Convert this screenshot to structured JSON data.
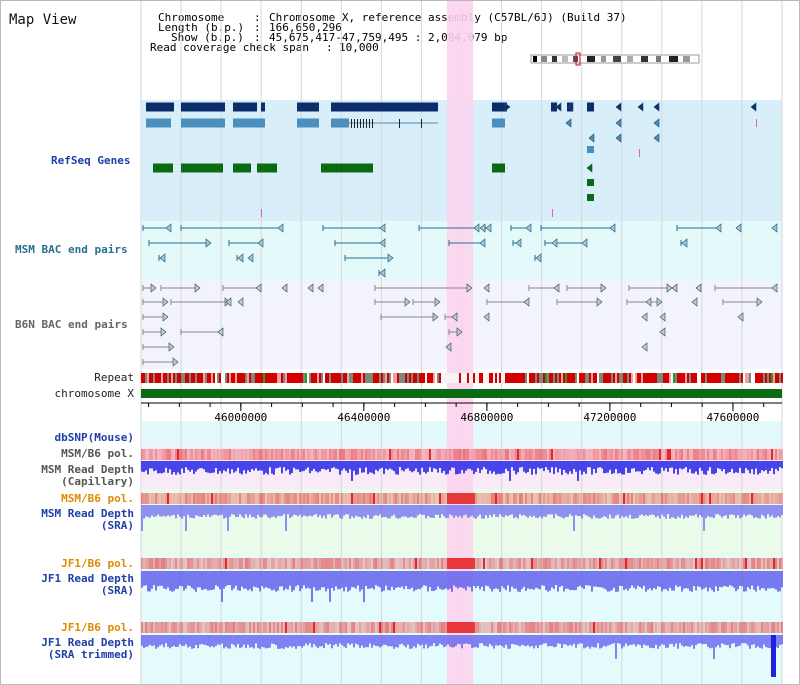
{
  "view_title": "Map View",
  "header": {
    "chromosome_key": "Chromosome",
    "chromosome_value": "Chromosome X, reference assembly (C57BL/6J) (Build 37)",
    "length_key": "Length (b.p.)",
    "length_value": "166,650,296",
    "show_key": "Show (b.p.)",
    "show_value": "45,675,417-47,759,495 : 2,084,079 bp",
    "coverage_key": "Read coverage check span",
    "coverage_value": "10,000"
  },
  "tracks": {
    "refseq": "RefSeq Genes",
    "msm_bac": "MSM BAC end pairs",
    "b6n_bac": "B6N BAC end pairs",
    "repeat": "Repeat",
    "chromosome": "chromosome X",
    "dbsnp": "dbSNP(Mouse)",
    "msm_b6_pol_cap": "MSM/B6 pol.",
    "msm_depth_cap_1": "MSM Read Depth",
    "msm_depth_cap_2": "(Capillary)",
    "msm_b6_pol_sra": "MSM/B6 pol.",
    "msm_depth_sra_1": "MSM Read Depth",
    "msm_depth_sra_2": "(SRA)",
    "jf1_b6_pol_1": "JF1/B6 pol.",
    "jf1_depth_1": "JF1 Read Depth",
    "jf1_depth_1b": "(SRA)",
    "jf1_b6_pol_2": "JF1/B6 pol.",
    "jf1_depth_2": "JF1 Read Depth",
    "jf1_depth_2b": "(SRA trimmed)"
  },
  "axis": {
    "view_start": 45675417,
    "view_end": 47759495,
    "ticks": [
      {
        "value": 46000000,
        "label": "46000000"
      },
      {
        "value": 46400000,
        "label": "46400000"
      },
      {
        "value": 46800000,
        "label": "46800000"
      },
      {
        "value": 47200000,
        "label": "47200000"
      },
      {
        "value": 47600000,
        "label": "47600000"
      }
    ]
  },
  "highlight_region": {
    "start": 46670000,
    "end": 46755000
  },
  "colors": {
    "gene_dark": "#0b2e6a",
    "gene_mid": "#4a8fbe",
    "gene_green": "#0b6b12",
    "bac_msm": "#2a6f8c",
    "bac_b6n": "#6d6d6d",
    "chromosome_bar": "#0b6b12",
    "highlight": "#fcd4ee",
    "refseq_bg": "#d8eef8",
    "msm_bg": "#e4fafa",
    "b6n_bg": "#f3f3fb",
    "cap_bg": "#f9eaf7",
    "sra_bg": "#eafbea",
    "jf1_bg": "#e4fbfb",
    "label_blue": "#1f3ea8",
    "label_orange": "#e08a00",
    "label_dark": "#333333"
  }
}
